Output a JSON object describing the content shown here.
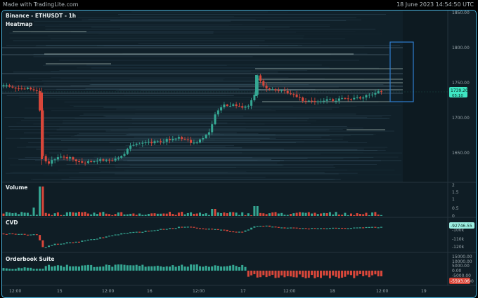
{
  "topbar": {
    "brand": "Made with TradingLite.com",
    "timestamp": "18 June 2023 14:54:50 UTC"
  },
  "chart": {
    "symbol": "Binance - ETHUSDT - 1h",
    "heatmap_label": "Heatmap"
  },
  "price_axis": {
    "ticks": [
      "1850.00",
      "1800.00",
      "1750.00",
      "1700.00",
      "1650.00"
    ],
    "last_price": "1739.20",
    "countdown": "05:10"
  },
  "panels": {
    "volume": {
      "label": "Volume",
      "ticks": [
        "2",
        "1.5",
        "1",
        "0.5",
        "0"
      ]
    },
    "cvd": {
      "label": "CVD",
      "ticks": [
        "-100k",
        "-110k",
        "-120k"
      ],
      "last_value": "-92746.55"
    },
    "orderbook": {
      "label": "Orderbook Suite",
      "ticks": [
        "15000.00",
        "10000.00",
        "5000.00",
        "0.00",
        "-5000.00",
        "-10000.00"
      ],
      "last_value": "-5593.06"
    }
  },
  "time_axis": {
    "ticks": [
      "12:00",
      "15",
      "12:00",
      "16",
      "12:00",
      "17",
      "12:00",
      "18",
      "12:00",
      "19"
    ]
  },
  "colors": {
    "up": "#35a793",
    "down": "#d9473a",
    "background": "#0f1d25",
    "frame": "#4ab0d9",
    "highlight_box": "#2f7fd0",
    "last_price_tag": "#3fe6c3",
    "cvd_tag": "#9ef0e4",
    "ob_tag": "#d9473a"
  }
}
